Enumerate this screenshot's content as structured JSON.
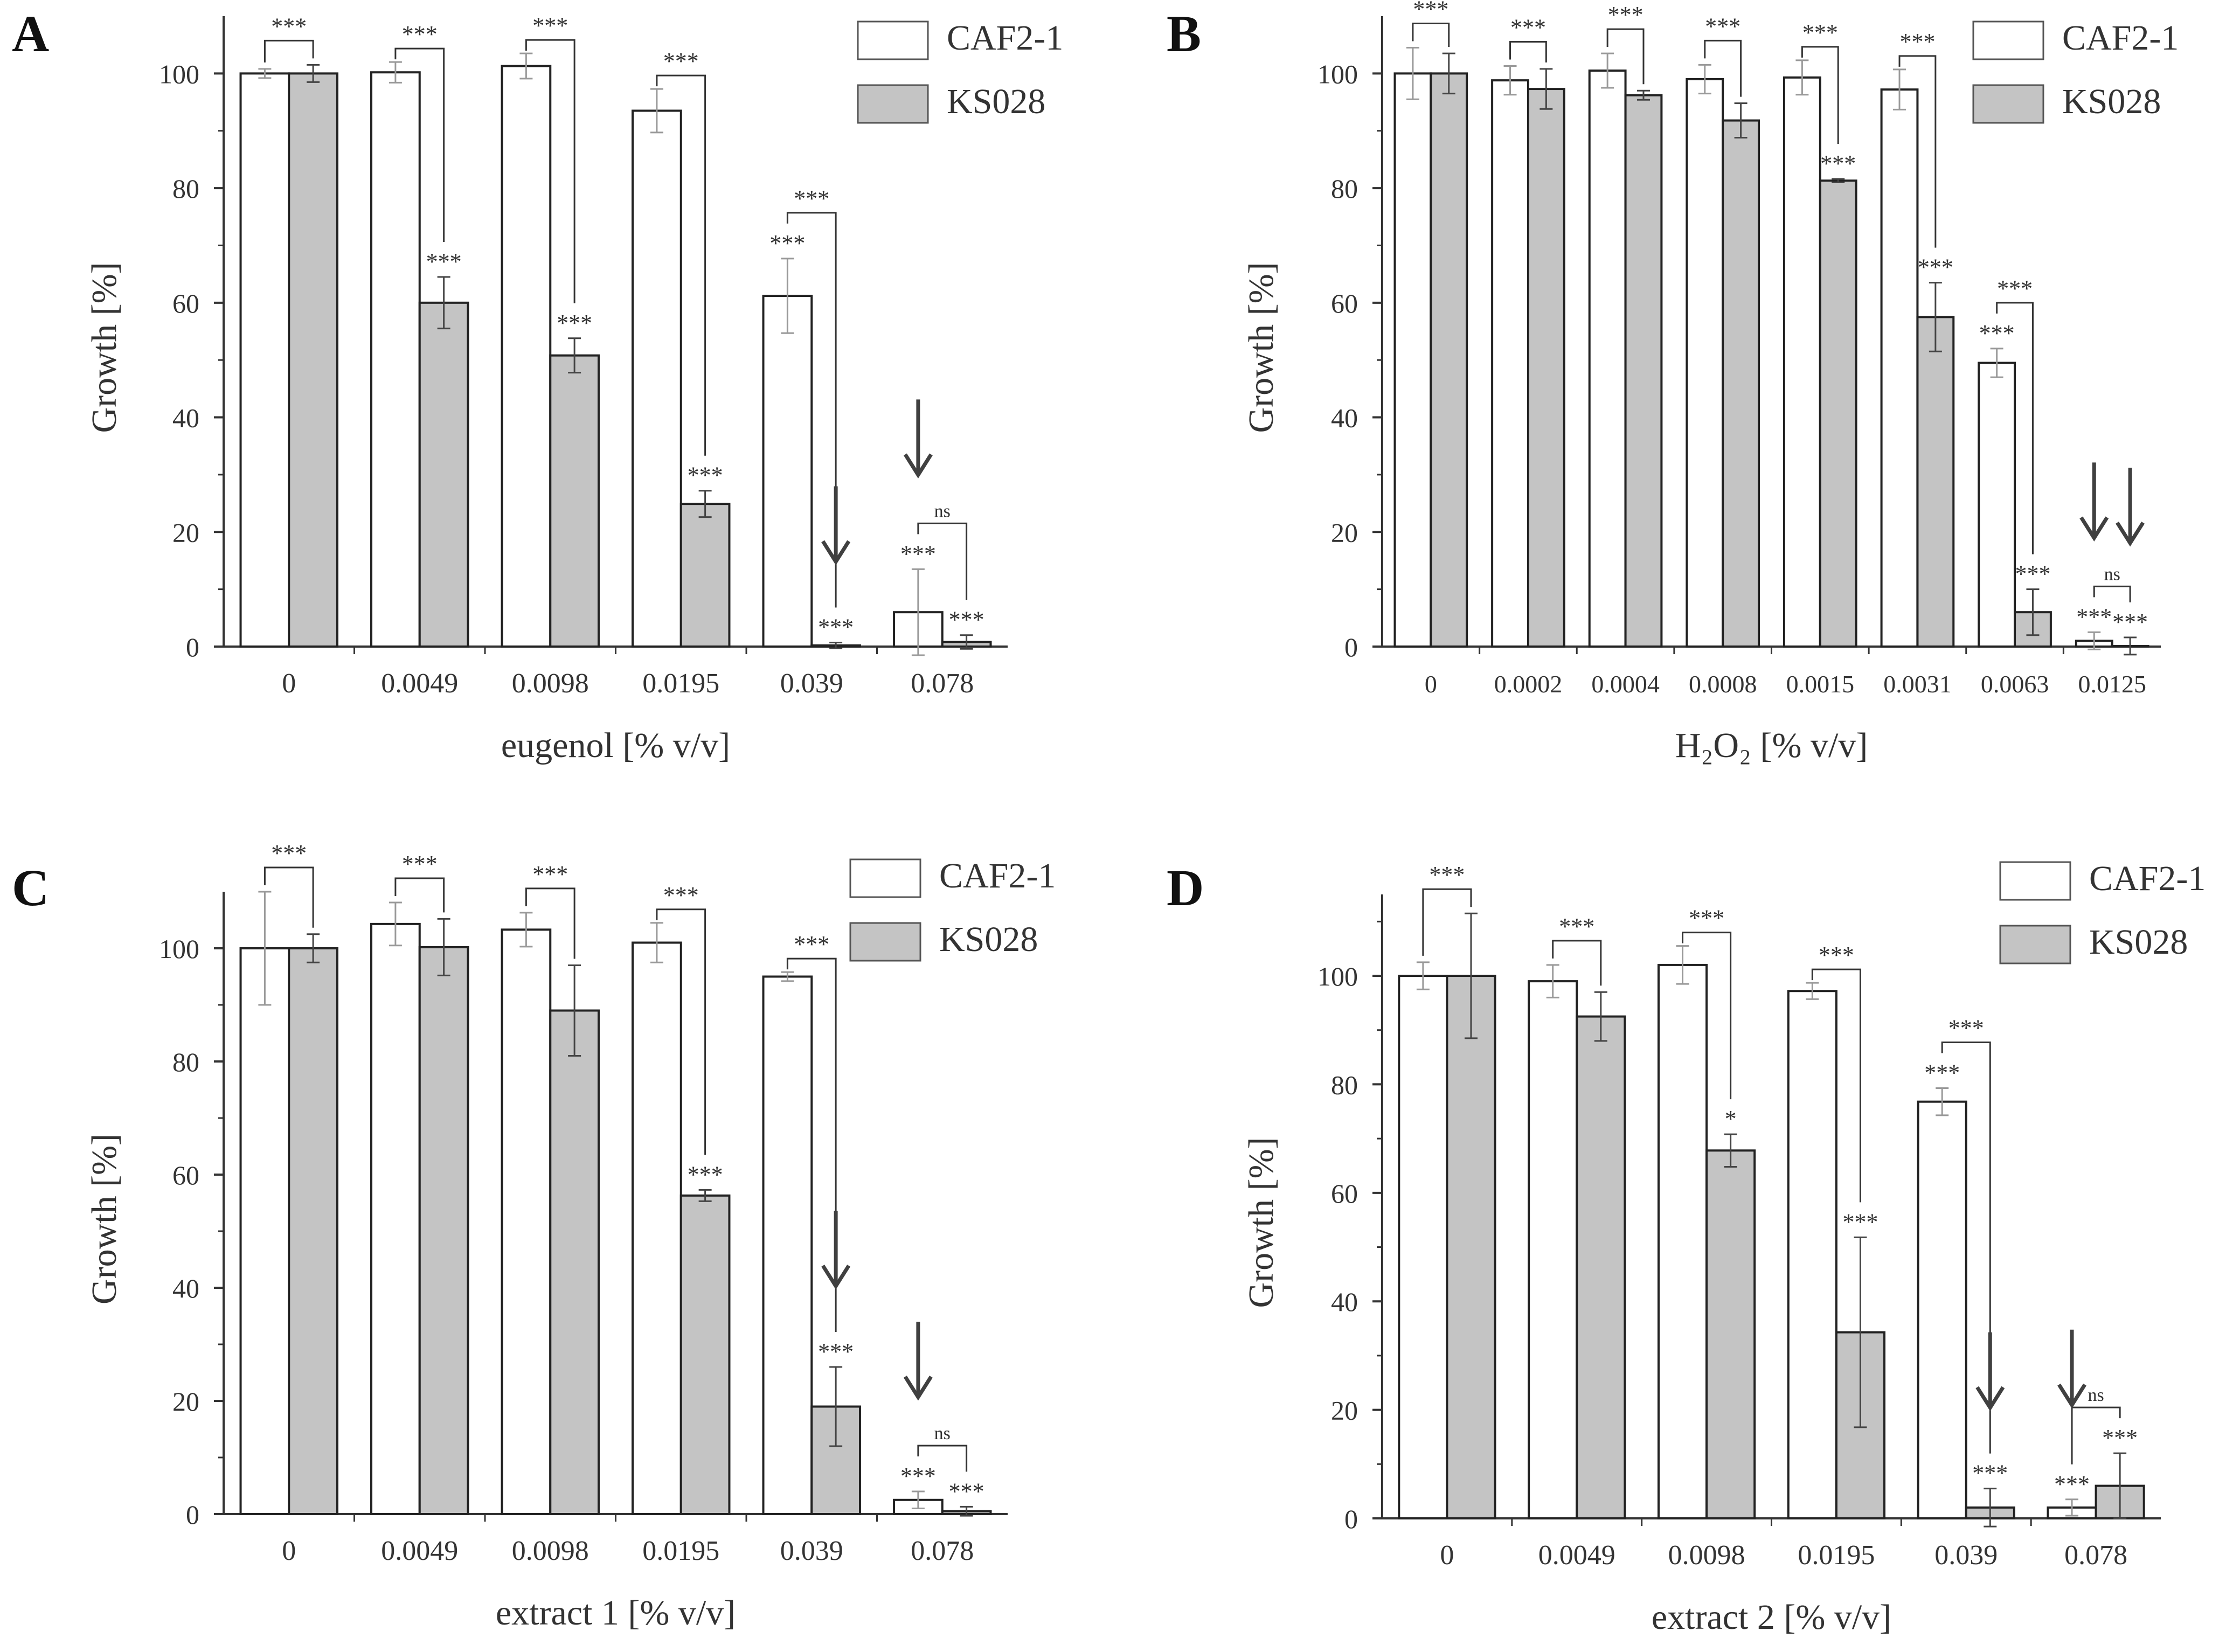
{
  "colors": {
    "caf_fill": "#ffffff",
    "ks_fill": "#c4c4c4",
    "axis": "#333333",
    "arrow": "#404040"
  },
  "legend": [
    "CAF2-1",
    "KS028"
  ],
  "chart_data": [
    {
      "panel": "A",
      "type": "bar",
      "xlabel": "eugenol [% v/v]",
      "ylabel": "Growth [%]",
      "ylim": [
        0,
        110
      ],
      "yticks": [
        0,
        20,
        40,
        60,
        80,
        100
      ],
      "categories": [
        "0",
        "0.0049",
        "0.0098",
        "0.0195",
        "0.039",
        "0.078"
      ],
      "series": [
        {
          "name": "CAF2-1",
          "values": [
            100,
            100.2,
            101.3,
            93.5,
            61.2,
            6.0
          ],
          "errors": [
            0.8,
            1.8,
            2.2,
            3.8,
            6.5,
            7.5
          ]
        },
        {
          "name": "KS028",
          "values": [
            100,
            60,
            50.8,
            24.9,
            0.2,
            0.8
          ],
          "errors": [
            1.5,
            4.5,
            3.0,
            2.3,
            0.5,
            1.2
          ]
        }
      ],
      "bracket_labels": [
        "***",
        "***",
        "***",
        "***",
        "***",
        "ns"
      ],
      "caf_marks": [
        "",
        "",
        "",
        "",
        "***",
        "***"
      ],
      "ks_marks": [
        "",
        "***",
        "***",
        "***",
        "***",
        "***"
      ],
      "arrows": [
        {
          "index": 4,
          "bar": 1
        },
        {
          "index": 5,
          "bar": 0
        }
      ]
    },
    {
      "panel": "B",
      "type": "bar",
      "xlabel": "H₂O₂ [% v/v]",
      "ylabel": "Growth [%]",
      "ylim": [
        0,
        110
      ],
      "yticks": [
        0,
        20,
        40,
        60,
        80,
        100
      ],
      "categories": [
        "0",
        "0.0002",
        "0.0004",
        "0.0008",
        "0.0015",
        "0.0031",
        "0.0063",
        "0.0125"
      ],
      "series": [
        {
          "name": "CAF2-1",
          "values": [
            100,
            98.8,
            100.5,
            99.0,
            99.3,
            97.2,
            49.5,
            1.0
          ],
          "errors": [
            4.5,
            2.5,
            3.0,
            2.5,
            3.0,
            3.5,
            2.5,
            1.5
          ]
        },
        {
          "name": "KS028",
          "values": [
            100,
            97.3,
            96.2,
            91.8,
            81.3,
            57.5,
            6.0,
            0.1
          ],
          "errors": [
            3.5,
            3.5,
            0.8,
            3.0,
            0.3,
            6.0,
            4.0,
            1.5
          ]
        }
      ],
      "bracket_labels": [
        "***",
        "***",
        "***",
        "***",
        "***",
        "***",
        "***",
        "ns"
      ],
      "caf_marks": [
        "",
        "",
        "",
        "",
        "",
        "",
        "***",
        "***"
      ],
      "ks_marks": [
        "",
        "",
        "",
        "",
        "***",
        "***",
        "***",
        "***"
      ],
      "arrows": [
        {
          "index": 7,
          "bar": 0
        },
        {
          "index": 7,
          "bar": 1
        }
      ]
    },
    {
      "panel": "C",
      "type": "bar",
      "xlabel": "extract 1 [% v/v]",
      "ylabel": "Growth [%]",
      "ylim": [
        0,
        110
      ],
      "yticks": [
        0,
        20,
        40,
        60,
        80,
        100
      ],
      "categories": [
        "0",
        "0.0049",
        "0.0098",
        "0.0195",
        "0.039",
        "0.078"
      ],
      "series": [
        {
          "name": "CAF2-1",
          "values": [
            100,
            104.3,
            103.3,
            101.0,
            95.0,
            2.5
          ],
          "errors": [
            10,
            3.8,
            3.0,
            3.5,
            0.8,
            1.5
          ]
        },
        {
          "name": "KS028",
          "values": [
            100,
            100.2,
            89.0,
            56.3,
            19.0,
            0.5
          ],
          "errors": [
            2.5,
            5.0,
            8.0,
            1.0,
            7.0,
            0.8
          ]
        }
      ],
      "bracket_labels": [
        "***",
        "***",
        "***",
        "***",
        "***",
        "ns"
      ],
      "caf_marks": [
        "",
        "",
        "",
        "",
        "",
        "***"
      ],
      "ks_marks": [
        "",
        "",
        "",
        "***",
        "***",
        "***"
      ],
      "arrows": [
        {
          "index": 4,
          "bar": 1
        },
        {
          "index": 5,
          "bar": 0
        }
      ]
    },
    {
      "panel": "D",
      "type": "bar",
      "xlabel": "extract 2 [% v/v]",
      "ylabel": "Growth [%]",
      "ylim": [
        0,
        115
      ],
      "yticks": [
        0,
        20,
        40,
        60,
        80,
        100
      ],
      "categories": [
        "0",
        "0.0049",
        "0.0098",
        "0.0195",
        "0.039",
        "0.078"
      ],
      "series": [
        {
          "name": "CAF2-1",
          "values": [
            100,
            99.0,
            102.0,
            97.2,
            76.8,
            2.0
          ],
          "errors": [
            2.5,
            3.0,
            3.5,
            1.5,
            2.5,
            1.5
          ]
        },
        {
          "name": "KS028",
          "values": [
            100,
            92.5,
            67.8,
            34.3,
            2.0,
            6.0
          ],
          "errors": [
            11.5,
            4.5,
            3.0,
            17.5,
            3.5,
            6.0
          ]
        }
      ],
      "bracket_labels": [
        "***",
        "***",
        "***",
        "***",
        "***",
        "ns"
      ],
      "caf_marks": [
        "",
        "",
        "",
        "",
        "***",
        "***"
      ],
      "ks_marks": [
        "",
        "",
        "*",
        "***",
        "***",
        "***"
      ],
      "arrows": [
        {
          "index": 4,
          "bar": 1
        },
        {
          "index": 5,
          "bar": 0
        }
      ]
    }
  ]
}
